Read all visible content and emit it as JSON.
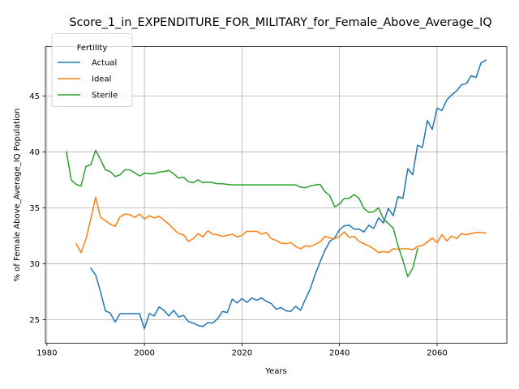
{
  "chart_data": {
    "type": "line",
    "title": "Score_1_in_EXPENDITURE_FOR_MILITARY_for_Female_Above_Average_IQ",
    "xlabel": "Years",
    "ylabel": "% of Female Above_Average_IQ Population",
    "xlim": [
      1979.7,
      2074.3
    ],
    "ylim": [
      22.9,
      49.4
    ],
    "xticks": [
      1980,
      2000,
      2020,
      2040,
      2060
    ],
    "yticks": [
      25,
      30,
      35,
      40,
      45
    ],
    "grid": true,
    "legend": {
      "title": "Fertility",
      "placement": "top-left"
    },
    "series": [
      {
        "name": "Actual",
        "color": "#1f77b4",
        "x": [
          1989,
          1990,
          1991,
          1992,
          1993,
          1994,
          1995,
          1996,
          1997,
          1998,
          1999,
          2000,
          2001,
          2002,
          2003,
          2004,
          2005,
          2006,
          2007,
          2008,
          2009,
          2010,
          2011,
          2012,
          2013,
          2014,
          2015,
          2016,
          2017,
          2018,
          2019,
          2020,
          2021,
          2022,
          2023,
          2024,
          2025,
          2026,
          2027,
          2028,
          2029,
          2030,
          2031,
          2032,
          2033,
          2034,
          2035,
          2036,
          2037,
          2038,
          2039,
          2040,
          2041,
          2042,
          2043,
          2044,
          2045,
          2046,
          2047,
          2048,
          2049,
          2050,
          2051,
          2052,
          2053,
          2054,
          2055,
          2056,
          2057,
          2058,
          2059,
          2060,
          2061,
          2062,
          2063,
          2064,
          2065,
          2066,
          2067,
          2068,
          2069,
          2070
        ],
        "values": [
          29.6,
          29.0,
          27.5,
          25.8,
          25.6,
          24.8,
          25.55,
          25.55,
          25.55,
          25.55,
          25.55,
          24.2,
          25.55,
          25.35,
          26.15,
          25.85,
          25.35,
          25.85,
          25.25,
          25.4,
          24.85,
          24.7,
          24.5,
          24.4,
          24.75,
          24.7,
          25.1,
          25.75,
          25.65,
          26.85,
          26.5,
          26.9,
          26.55,
          26.95,
          26.75,
          26.95,
          26.65,
          26.45,
          25.95,
          26.1,
          25.8,
          25.75,
          26.2,
          25.85,
          26.85,
          27.75,
          29.05,
          30.15,
          31.2,
          32.0,
          32.3,
          33.05,
          33.4,
          33.45,
          33.1,
          33.1,
          32.85,
          33.45,
          33.15,
          34.1,
          33.65,
          34.95,
          34.3,
          36.0,
          35.85,
          38.5,
          37.95,
          40.6,
          40.4,
          42.8,
          42.0,
          43.9,
          43.7,
          44.65,
          45.1,
          45.45,
          46.0,
          46.1,
          46.8,
          46.65,
          47.95,
          48.2
        ]
      },
      {
        "name": "Ideal",
        "color": "#ff7f0e",
        "x": [
          1986,
          1987,
          1988,
          1989,
          1990,
          1991,
          1992,
          1993,
          1994,
          1995,
          1996,
          1997,
          1998,
          1999,
          2000,
          2001,
          2002,
          2003,
          2004,
          2005,
          2006,
          2007,
          2008,
          2009,
          2010,
          2011,
          2012,
          2013,
          2014,
          2015,
          2016,
          2017,
          2018,
          2019,
          2020,
          2021,
          2022,
          2023,
          2024,
          2025,
          2026,
          2027,
          2028,
          2029,
          2030,
          2031,
          2032,
          2033,
          2034,
          2035,
          2036,
          2037,
          2038,
          2039,
          2040,
          2041,
          2042,
          2043,
          2044,
          2045,
          2046,
          2047,
          2048,
          2049,
          2050,
          2051,
          2052,
          2053,
          2054,
          2055,
          2056,
          2057,
          2058,
          2059,
          2060,
          2061,
          2062,
          2063,
          2064,
          2065,
          2066,
          2067,
          2068,
          2069,
          2070
        ],
        "values": [
          31.8,
          31.0,
          32.2,
          34.0,
          35.95,
          34.15,
          33.85,
          33.55,
          33.35,
          34.2,
          34.45,
          34.4,
          34.15,
          34.45,
          34.0,
          34.3,
          34.1,
          34.25,
          33.9,
          33.55,
          33.1,
          32.7,
          32.6,
          32.0,
          32.25,
          32.7,
          32.4,
          32.95,
          32.65,
          32.6,
          32.45,
          32.55,
          32.65,
          32.4,
          32.55,
          32.9,
          32.9,
          32.9,
          32.65,
          32.8,
          32.25,
          32.1,
          31.85,
          31.8,
          31.9,
          31.55,
          31.35,
          31.6,
          31.55,
          31.75,
          31.95,
          32.45,
          32.3,
          32.25,
          32.45,
          32.85,
          32.35,
          32.45,
          32.0,
          31.8,
          31.6,
          31.35,
          31.0,
          31.1,
          31.0,
          31.35,
          31.3,
          31.35,
          31.35,
          31.25,
          31.55,
          31.65,
          31.95,
          32.3,
          31.9,
          32.6,
          32.05,
          32.5,
          32.25,
          32.7,
          32.6,
          32.7,
          32.8,
          32.8,
          32.75
        ]
      },
      {
        "name": "Sterile",
        "color": "#2ca02c",
        "x": [
          1984,
          1985,
          1986,
          1987,
          1988,
          1989,
          1990,
          1991,
          1992,
          1993,
          1994,
          1995,
          1996,
          1997,
          1998,
          1999,
          2000,
          2001,
          2002,
          2003,
          2004,
          2005,
          2006,
          2007,
          2008,
          2009,
          2010,
          2011,
          2012,
          2013,
          2014,
          2015,
          2016,
          2017,
          2018,
          2019,
          2020,
          2021,
          2022,
          2023,
          2024,
          2025,
          2026,
          2027,
          2028,
          2029,
          2030,
          2031,
          2032,
          2033,
          2034,
          2035,
          2036,
          2037,
          2038,
          2039,
          2040,
          2041,
          2042,
          2043,
          2044,
          2045,
          2046,
          2047,
          2048,
          2049,
          2050,
          2051,
          2052,
          2053,
          2054,
          2055,
          2056
        ],
        "values": [
          40.0,
          37.5,
          37.1,
          36.95,
          38.7,
          38.85,
          40.15,
          39.3,
          38.4,
          38.25,
          37.8,
          37.95,
          38.4,
          38.4,
          38.15,
          37.85,
          38.1,
          38.05,
          38.05,
          38.2,
          38.25,
          38.35,
          38.05,
          37.65,
          37.75,
          37.35,
          37.25,
          37.5,
          37.25,
          37.3,
          37.25,
          37.15,
          37.15,
          37.1,
          37.05,
          37.05,
          37.05,
          37.05,
          37.05,
          37.05,
          37.05,
          37.05,
          37.05,
          37.05,
          37.05,
          37.05,
          37.05,
          37.05,
          36.85,
          36.8,
          36.95,
          37.05,
          37.1,
          36.45,
          36.1,
          35.1,
          35.35,
          35.85,
          35.85,
          36.2,
          35.85,
          34.95,
          34.6,
          34.65,
          35.0,
          34.0,
          33.6,
          33.2,
          31.6,
          30.3,
          28.85,
          29.6,
          31.35
        ]
      }
    ]
  }
}
